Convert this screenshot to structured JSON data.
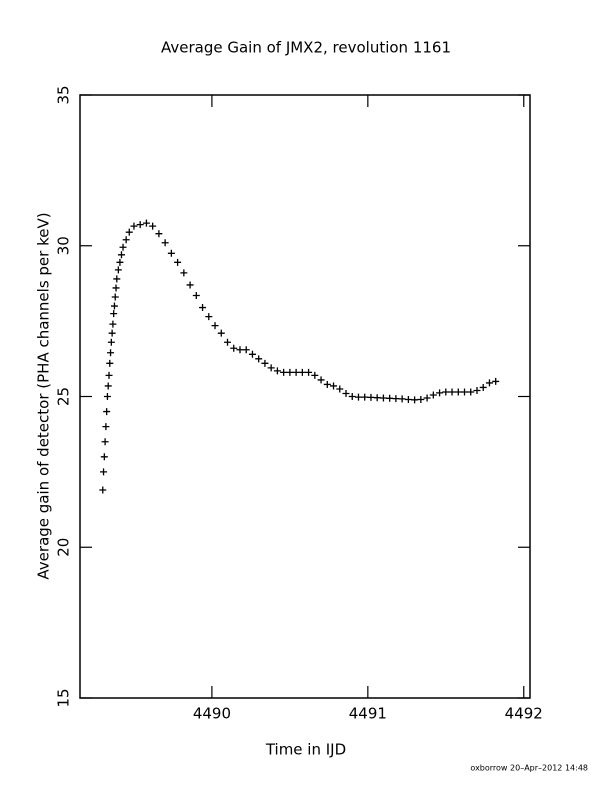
{
  "chart_data": {
    "type": "scatter",
    "title": "Average Gain of JMX2, revolution 1161",
    "xlabel": "Time in IJD",
    "ylabel": "Average gain of detector (PHA channels per keV)",
    "footer": "oxborrow 20–Apr–2012 14:48",
    "xlim": [
      4489.154,
      4492.04
    ],
    "ylim": [
      15,
      35
    ],
    "xticks": [
      4490,
      4491,
      4492
    ],
    "yticks": [
      15,
      20,
      25,
      30,
      35
    ],
    "color": "#000000",
    "marker": "plus",
    "x": [
      4489.3,
      4489.305,
      4489.31,
      4489.315,
      4489.32,
      4489.325,
      4489.33,
      4489.335,
      4489.34,
      4489.345,
      4489.35,
      4489.355,
      4489.36,
      4489.365,
      4489.37,
      4489.375,
      4489.38,
      4489.385,
      4489.39,
      4489.4,
      4489.41,
      4489.42,
      4489.43,
      4489.45,
      4489.47,
      4489.5,
      4489.54,
      4489.58,
      4489.62,
      4489.66,
      4489.7,
      4489.74,
      4489.78,
      4489.82,
      4489.86,
      4489.9,
      4489.94,
      4489.98,
      4490.02,
      4490.06,
      4490.1,
      4490.14,
      4490.18,
      4490.22,
      4490.26,
      4490.3,
      4490.34,
      4490.38,
      4490.42,
      4490.46,
      4490.5,
      4490.54,
      4490.58,
      4490.62,
      4490.66,
      4490.7,
      4490.74,
      4490.78,
      4490.82,
      4490.86,
      4490.9,
      4490.94,
      4490.98,
      4491.02,
      4491.06,
      4491.1,
      4491.14,
      4491.18,
      4491.22,
      4491.26,
      4491.3,
      4491.34,
      4491.38,
      4491.42,
      4491.46,
      4491.5,
      4491.54,
      4491.58,
      4491.62,
      4491.66,
      4491.7,
      4491.74,
      4491.78,
      4491.82
    ],
    "y": [
      21.9,
      22.5,
      23.0,
      23.5,
      24.0,
      24.5,
      25.0,
      25.35,
      25.7,
      26.1,
      26.45,
      26.8,
      27.1,
      27.4,
      27.75,
      28.0,
      28.3,
      28.6,
      28.9,
      29.2,
      29.45,
      29.7,
      29.95,
      30.2,
      30.45,
      30.65,
      30.7,
      30.75,
      30.65,
      30.4,
      30.1,
      29.75,
      29.45,
      29.1,
      28.7,
      28.35,
      27.95,
      27.65,
      27.35,
      27.1,
      26.8,
      26.6,
      26.55,
      26.55,
      26.4,
      26.25,
      26.1,
      25.95,
      25.85,
      25.8,
      25.8,
      25.8,
      25.8,
      25.8,
      25.7,
      25.55,
      25.4,
      25.35,
      25.25,
      25.1,
      25.0,
      24.98,
      24.98,
      24.97,
      24.96,
      24.95,
      24.94,
      24.93,
      24.92,
      24.9,
      24.89,
      24.9,
      24.95,
      25.05,
      25.12,
      25.15,
      25.15,
      25.15,
      25.15,
      25.15,
      25.2,
      25.3,
      25.45,
      25.5
    ]
  }
}
